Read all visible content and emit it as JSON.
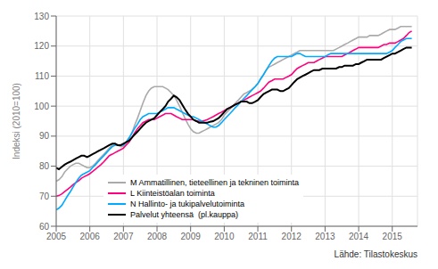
{
  "chart_data": {
    "type": "line",
    "ylabel": "Indeksi (2010=100)",
    "annotations": [
      "Lähde: Tilastokeskus"
    ],
    "xlim": [
      2005.0,
      2015.75
    ],
    "xticks": [
      2005,
      2006,
      2007,
      2008,
      2009,
      2010,
      2011,
      2012,
      2013,
      2014,
      2015
    ],
    "ylim": [
      60,
      130
    ],
    "yticks": [
      60,
      70,
      80,
      90,
      100,
      110,
      120,
      130
    ],
    "grid": true,
    "legend": "lower left",
    "x": [
      2005.0,
      2005.08,
      2005.17,
      2005.25,
      2005.33,
      2005.42,
      2005.5,
      2005.58,
      2005.67,
      2005.75,
      2005.83,
      2005.92,
      2006.0,
      2006.08,
      2006.17,
      2006.25,
      2006.33,
      2006.42,
      2006.5,
      2006.58,
      2006.67,
      2006.75,
      2006.83,
      2006.92,
      2007.0,
      2007.08,
      2007.17,
      2007.25,
      2007.33,
      2007.42,
      2007.5,
      2007.58,
      2007.67,
      2007.75,
      2007.83,
      2007.92,
      2008.0,
      2008.08,
      2008.17,
      2008.25,
      2008.33,
      2008.42,
      2008.5,
      2008.58,
      2008.67,
      2008.75,
      2008.83,
      2008.92,
      2009.0,
      2009.08,
      2009.17,
      2009.25,
      2009.33,
      2009.42,
      2009.5,
      2009.58,
      2009.67,
      2009.75,
      2009.83,
      2009.92,
      2010.0,
      2010.08,
      2010.17,
      2010.25,
      2010.33,
      2010.42,
      2010.5,
      2010.58,
      2010.67,
      2010.75,
      2010.83,
      2010.92,
      2011.0,
      2011.08,
      2011.17,
      2011.25,
      2011.33,
      2011.42,
      2011.5,
      2011.58,
      2011.67,
      2011.75,
      2011.83,
      2011.92,
      2012.0,
      2012.08,
      2012.17,
      2012.25,
      2012.33,
      2012.42,
      2012.5,
      2012.58,
      2012.67,
      2012.75,
      2012.83,
      2012.92,
      2013.0,
      2013.08,
      2013.17,
      2013.25,
      2013.33,
      2013.42,
      2013.5,
      2013.58,
      2013.67,
      2013.75,
      2013.83,
      2013.92,
      2014.0,
      2014.08,
      2014.17,
      2014.25,
      2014.33,
      2014.42,
      2014.5,
      2014.58,
      2014.67,
      2014.75,
      2014.83,
      2014.92,
      2015.0,
      2015.08,
      2015.17,
      2015.25,
      2015.33,
      2015.42,
      2015.5,
      2015.58
    ],
    "series": [
      {
        "name": "M Ammatillinen, tieteellinen ja tekninen toiminta",
        "color": "#aaaaaa",
        "values": [
          75.0,
          75.5,
          76.5,
          78.0,
          79.0,
          80.0,
          80.5,
          81.0,
          81.0,
          80.5,
          80.0,
          79.5,
          79.5,
          80.0,
          81.0,
          82.0,
          83.0,
          84.0,
          85.0,
          86.0,
          87.0,
          87.5,
          87.0,
          86.5,
          86.5,
          87.5,
          89.0,
          91.0,
          93.5,
          96.0,
          98.5,
          101.0,
          103.5,
          105.0,
          106.0,
          106.5,
          106.5,
          106.5,
          106.5,
          106.0,
          105.5,
          104.5,
          103.5,
          102.0,
          100.0,
          98.0,
          96.0,
          94.0,
          92.5,
          91.5,
          91.0,
          91.0,
          91.5,
          92.0,
          92.5,
          93.0,
          93.5,
          94.0,
          94.5,
          95.5,
          97.0,
          98.0,
          99.0,
          100.0,
          101.0,
          102.0,
          103.0,
          104.0,
          104.5,
          105.0,
          105.5,
          106.5,
          107.5,
          109.0,
          110.5,
          112.0,
          113.0,
          113.5,
          114.0,
          114.5,
          115.0,
          115.5,
          116.0,
          116.5,
          117.0,
          117.5,
          118.0,
          118.5,
          118.5,
          118.5,
          118.5,
          118.5,
          118.5,
          118.5,
          118.5,
          118.5,
          118.5,
          118.5,
          118.5,
          118.5,
          119.0,
          119.5,
          120.0,
          120.5,
          121.0,
          121.5,
          122.0,
          122.5,
          123.0,
          123.0,
          123.0,
          123.0,
          123.5,
          123.5,
          123.5,
          123.5,
          124.0,
          124.5,
          125.0,
          125.5,
          125.5,
          125.5,
          126.0,
          126.5,
          126.5,
          126.5,
          126.5,
          126.5
        ]
      },
      {
        "name": "L Kiinteistöalan toiminta",
        "color": "#ff007f",
        "values": [
          70.0,
          70.2,
          70.8,
          71.5,
          72.2,
          73.0,
          73.8,
          74.5,
          75.2,
          76.0,
          76.5,
          77.0,
          77.5,
          78.2,
          79.0,
          79.8,
          80.5,
          81.5,
          82.5,
          83.5,
          84.0,
          84.5,
          85.0,
          85.5,
          86.0,
          87.0,
          88.0,
          89.5,
          91.0,
          92.5,
          93.5,
          94.5,
          95.0,
          95.5,
          95.5,
          95.5,
          96.0,
          96.5,
          97.0,
          97.5,
          97.5,
          97.5,
          97.0,
          96.5,
          96.0,
          95.5,
          95.5,
          95.5,
          95.5,
          95.5,
          95.0,
          95.0,
          95.0,
          95.2,
          95.5,
          96.0,
          96.5,
          97.0,
          97.5,
          98.0,
          98.5,
          99.0,
          99.5,
          100.0,
          100.5,
          101.0,
          101.5,
          102.0,
          102.5,
          103.0,
          103.5,
          104.0,
          104.5,
          105.0,
          106.0,
          107.0,
          108.0,
          108.5,
          109.0,
          109.0,
          109.0,
          109.0,
          109.5,
          110.0,
          110.5,
          111.5,
          112.5,
          113.0,
          113.5,
          114.0,
          114.5,
          114.5,
          114.5,
          115.0,
          115.5,
          116.0,
          116.5,
          116.5,
          116.5,
          116.5,
          116.5,
          116.5,
          116.5,
          117.0,
          117.5,
          118.0,
          118.5,
          119.0,
          119.5,
          119.5,
          119.5,
          119.5,
          119.5,
          119.5,
          119.5,
          119.5,
          120.0,
          120.5,
          120.5,
          121.0,
          121.0,
          121.0,
          121.5,
          122.0,
          122.5,
          123.5,
          124.5,
          125.0
        ]
      },
      {
        "name": "N Hallinto- ja tukipalvelutoiminta",
        "color": "#00aaff",
        "values": [
          65.5,
          66.0,
          67.0,
          68.5,
          70.0,
          71.5,
          73.0,
          74.5,
          76.0,
          77.0,
          77.5,
          78.0,
          78.5,
          79.5,
          80.5,
          81.5,
          82.5,
          83.5,
          84.5,
          85.5,
          86.5,
          87.0,
          87.0,
          87.0,
          87.0,
          88.0,
          89.5,
          91.0,
          92.5,
          94.0,
          95.5,
          96.5,
          97.0,
          97.5,
          97.5,
          97.5,
          97.5,
          98.0,
          98.5,
          99.0,
          99.5,
          99.5,
          99.5,
          99.0,
          98.5,
          98.0,
          97.5,
          97.0,
          96.5,
          96.5,
          96.0,
          95.5,
          95.0,
          94.5,
          94.0,
          93.5,
          93.0,
          93.0,
          93.5,
          94.5,
          95.5,
          96.5,
          97.5,
          98.5,
          99.5,
          100.5,
          101.5,
          102.5,
          103.5,
          104.5,
          105.5,
          106.5,
          107.5,
          109.0,
          110.5,
          112.0,
          113.5,
          115.0,
          116.0,
          116.5,
          116.5,
          116.5,
          116.5,
          116.5,
          116.5,
          117.0,
          117.5,
          117.5,
          117.0,
          116.5,
          116.5,
          116.5,
          116.5,
          116.5,
          116.5,
          116.5,
          116.5,
          117.0,
          117.5,
          117.5,
          117.5,
          117.5,
          117.5,
          117.5,
          117.5,
          117.5,
          117.5,
          117.5,
          117.5,
          117.5,
          117.5,
          117.5,
          117.5,
          117.5,
          117.5,
          117.5,
          117.5,
          117.5,
          117.5,
          118.0,
          118.5,
          119.5,
          120.5,
          121.5,
          122.0,
          122.5,
          122.5,
          122.5
        ]
      },
      {
        "name": "Palvelut yhteensä  (pl.kauppa)",
        "color": "#000000",
        "values": [
          79.5,
          79.0,
          79.8,
          80.5,
          81.0,
          81.5,
          82.0,
          82.5,
          83.0,
          83.5,
          83.5,
          83.0,
          83.5,
          84.0,
          84.5,
          85.0,
          85.5,
          86.0,
          86.5,
          87.0,
          87.5,
          87.5,
          87.0,
          87.0,
          87.5,
          88.0,
          88.5,
          89.5,
          90.5,
          91.5,
          92.5,
          93.5,
          94.5,
          95.0,
          95.5,
          96.0,
          97.0,
          98.0,
          99.0,
          100.0,
          101.5,
          102.5,
          103.5,
          103.0,
          102.0,
          100.5,
          99.0,
          97.5,
          96.5,
          95.5,
          95.0,
          94.5,
          94.5,
          94.5,
          94.5,
          94.8,
          95.0,
          95.5,
          96.0,
          97.0,
          98.0,
          99.0,
          99.5,
          100.0,
          100.5,
          101.0,
          101.5,
          101.5,
          101.5,
          101.0,
          101.0,
          101.5,
          102.0,
          103.0,
          104.0,
          104.5,
          105.0,
          105.5,
          105.5,
          105.5,
          105.0,
          105.0,
          105.5,
          106.0,
          107.0,
          108.0,
          109.0,
          109.5,
          110.0,
          110.5,
          111.0,
          111.5,
          112.0,
          112.0,
          112.0,
          112.5,
          112.5,
          112.5,
          112.5,
          112.5,
          112.5,
          113.0,
          113.0,
          113.5,
          113.5,
          113.5,
          113.5,
          114.0,
          114.0,
          114.5,
          115.0,
          115.5,
          115.5,
          115.5,
          115.5,
          115.5,
          115.5,
          116.0,
          116.5,
          117.0,
          117.5,
          117.5,
          118.0,
          118.5,
          119.0,
          119.5,
          119.5,
          119.5
        ]
      }
    ]
  }
}
